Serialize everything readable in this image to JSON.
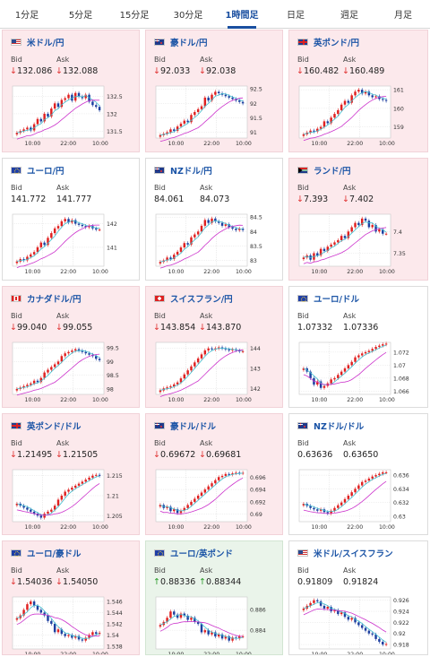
{
  "tabs": [
    {
      "label": "1分足",
      "active": false
    },
    {
      "label": "5分足",
      "active": false
    },
    {
      "label": "15分足",
      "active": false
    },
    {
      "label": "30分足",
      "active": false
    },
    {
      "label": "1時間足",
      "active": true
    },
    {
      "label": "日足",
      "active": false
    },
    {
      "label": "週足",
      "active": false
    },
    {
      "label": "月足",
      "active": false
    }
  ],
  "labels": {
    "bid": "Bid",
    "ask": "Ask"
  },
  "colors": {
    "up_candle": "#e02020",
    "down_candle": "#1d3fa0",
    "ma_fast": "#42c0d0",
    "ma_slow": "#cc33cc",
    "down_bg": "#fce9ec",
    "up_bg": "#eaf4ea",
    "pair_text": "#1b54a6"
  },
  "cards": [
    {
      "pair": "米ドル/円",
      "flag": "US",
      "trend": "down",
      "bid": "132.086",
      "ask": "132.088",
      "chart_data": {
        "type": "candlestick",
        "xticks": [
          "10:00",
          "22:00",
          "10:00"
        ],
        "yticks": [
          "132.5",
          "132",
          "131.5"
        ],
        "ylim": [
          131.3,
          132.8
        ],
        "close": [
          131.45,
          131.5,
          131.55,
          131.6,
          131.52,
          131.7,
          131.85,
          131.78,
          132.0,
          131.92,
          132.15,
          132.3,
          132.2,
          132.4,
          132.45,
          132.55,
          132.38,
          132.6,
          132.5,
          132.45,
          132.55,
          132.35,
          132.25,
          132.2,
          132.1
        ]
      }
    },
    {
      "pair": "豪ドル/円",
      "flag": "AU",
      "trend": "down",
      "bid": "92.033",
      "ask": "92.038",
      "chart_data": {
        "type": "candlestick",
        "xticks": [
          "10:00",
          "22:00",
          "10:00"
        ],
        "yticks": [
          "92.5",
          "92",
          "91.5",
          "91"
        ],
        "ylim": [
          90.8,
          92.6
        ],
        "close": [
          90.9,
          90.95,
          91.0,
          91.1,
          91.05,
          91.2,
          91.3,
          91.4,
          91.35,
          91.6,
          91.7,
          91.8,
          91.9,
          92.2,
          92.1,
          92.3,
          92.4,
          92.35,
          92.3,
          92.25,
          92.2,
          92.15,
          92.1,
          92.05,
          92.0
        ]
      }
    },
    {
      "pair": "英ポンド/円",
      "flag": "GB",
      "trend": "down",
      "bid": "160.482",
      "ask": "160.489",
      "chart_data": {
        "type": "candlestick",
        "xticks": [
          "10:00",
          "22:00",
          "10:00"
        ],
        "yticks": [
          "161",
          "160",
          "159"
        ],
        "ylim": [
          158.4,
          161.2
        ],
        "close": [
          158.6,
          158.7,
          158.8,
          158.75,
          158.9,
          159.0,
          159.3,
          159.2,
          159.5,
          159.7,
          159.9,
          160.2,
          160.4,
          160.3,
          160.7,
          160.9,
          161.0,
          160.8,
          160.9,
          160.7,
          160.6,
          160.65,
          160.5,
          160.45,
          160.4
        ]
      }
    },
    {
      "pair": "ユーロ/円",
      "flag": "EU",
      "trend": "flat",
      "bid": "141.772",
      "ask": "141.777",
      "chart_data": {
        "type": "candlestick",
        "xticks": [
          "10:00",
          "22:00",
          "10:00"
        ],
        "yticks": [
          "142",
          "141"
        ],
        "ylim": [
          140.2,
          142.4
        ],
        "close": [
          140.4,
          140.5,
          140.45,
          140.6,
          140.7,
          140.8,
          141.0,
          141.2,
          141.1,
          141.4,
          141.6,
          141.8,
          141.9,
          142.1,
          142.2,
          142.05,
          142.15,
          142.0,
          141.95,
          141.9,
          141.85,
          141.9,
          141.8,
          141.75,
          141.75
        ]
      }
    },
    {
      "pair": "NZドル/円",
      "flag": "NZ",
      "trend": "flat",
      "bid": "84.061",
      "ask": "84.073",
      "chart_data": {
        "type": "candlestick",
        "xticks": [
          "10:00",
          "22:00",
          "10:00"
        ],
        "yticks": [
          "84.5",
          "84",
          "83.5",
          "83"
        ],
        "ylim": [
          82.8,
          84.6
        ],
        "close": [
          82.95,
          83.0,
          83.1,
          83.05,
          83.2,
          83.3,
          83.45,
          83.6,
          83.55,
          83.8,
          83.9,
          84.0,
          84.2,
          84.4,
          84.3,
          84.45,
          84.35,
          84.3,
          84.2,
          84.25,
          84.15,
          84.1,
          84.05,
          84.1,
          84.05
        ]
      }
    },
    {
      "pair": "ランド/円",
      "flag": "ZA",
      "trend": "down",
      "bid": "7.393",
      "ask": "7.402",
      "chart_data": {
        "type": "candlestick",
        "xticks": [
          "10:00",
          "22:00",
          "10:00"
        ],
        "yticks": [
          "7.4",
          "7.35"
        ],
        "ylim": [
          7.32,
          7.44
        ],
        "close": [
          7.34,
          7.345,
          7.335,
          7.35,
          7.345,
          7.36,
          7.355,
          7.365,
          7.37,
          7.375,
          7.38,
          7.39,
          7.385,
          7.4,
          7.41,
          7.42,
          7.415,
          7.43,
          7.425,
          7.41,
          7.415,
          7.4,
          7.405,
          7.395,
          7.395
        ]
      }
    },
    {
      "pair": "カナダドル/円",
      "flag": "CA",
      "trend": "down",
      "bid": "99.040",
      "ask": "99.055",
      "chart_data": {
        "type": "candlestick",
        "xticks": [
          "10:00",
          "22:00",
          "10:00"
        ],
        "yticks": [
          "99.5",
          "99",
          "98.5",
          "98"
        ],
        "ylim": [
          97.8,
          99.7
        ],
        "close": [
          98.0,
          98.05,
          98.1,
          98.15,
          98.2,
          98.3,
          98.25,
          98.4,
          98.6,
          98.7,
          98.8,
          98.9,
          99.0,
          99.2,
          99.3,
          99.35,
          99.4,
          99.45,
          99.4,
          99.35,
          99.3,
          99.25,
          99.2,
          99.1,
          99.05
        ]
      }
    },
    {
      "pair": "スイスフラン/円",
      "flag": "CH",
      "trend": "down",
      "bid": "143.854",
      "ask": "143.870",
      "chart_data": {
        "type": "candlestick",
        "xticks": [
          "10:00",
          "22:00",
          "10:00"
        ],
        "yticks": [
          "144",
          "143",
          "142"
        ],
        "ylim": [
          141.7,
          144.3
        ],
        "close": [
          141.9,
          142.0,
          142.05,
          142.1,
          142.2,
          142.3,
          142.5,
          142.7,
          142.9,
          143.1,
          143.3,
          143.5,
          143.7,
          143.9,
          144.0,
          143.95,
          144.0,
          144.05,
          144.0,
          143.95,
          143.9,
          143.95,
          143.9,
          143.85,
          143.86
        ]
      }
    },
    {
      "pair": "ユーロ/ドル",
      "flag": "EU",
      "trend": "flat",
      "bid": "1.07332",
      "ask": "1.07336",
      "chart_data": {
        "type": "candlestick",
        "xticks": [
          "10:00",
          "22:00",
          "10:00"
        ],
        "yticks": [
          "1.072",
          "1.07",
          "1.068",
          "1.066"
        ],
        "ylim": [
          1.0655,
          1.0735
        ],
        "close": [
          1.0695,
          1.069,
          1.068,
          1.067,
          1.0675,
          1.0665,
          1.0668,
          1.0672,
          1.0678,
          1.068,
          1.0685,
          1.069,
          1.0695,
          1.07,
          1.0705,
          1.0712,
          1.0715,
          1.0718,
          1.072,
          1.0722,
          1.0725,
          1.0728,
          1.073,
          1.0732,
          1.0733
        ]
      }
    },
    {
      "pair": "英ポンド/ドル",
      "flag": "GB",
      "trend": "down",
      "bid": "1.21495",
      "ask": "1.21505",
      "chart_data": {
        "type": "candlestick",
        "xticks": [
          "10:00",
          "22:00",
          "10:00"
        ],
        "yticks": [
          "1.215",
          "1.21",
          "1.205"
        ],
        "ylim": [
          1.2035,
          1.2165
        ],
        "close": [
          1.208,
          1.2075,
          1.207,
          1.2065,
          1.206,
          1.2055,
          1.205,
          1.2045,
          1.2055,
          1.206,
          1.2065,
          1.2075,
          1.209,
          1.21,
          1.211,
          1.2115,
          1.212,
          1.2125,
          1.213,
          1.2135,
          1.214,
          1.2145,
          1.215,
          1.2152,
          1.215
        ]
      }
    },
    {
      "pair": "豪ドル/ドル",
      "flag": "AU",
      "trend": "down",
      "bid": "0.69672",
      "ask": "0.69681",
      "chart_data": {
        "type": "candlestick",
        "xticks": [
          "10:00",
          "22:00",
          "10:00"
        ],
        "yticks": [
          "0.696",
          "0.694",
          "0.692",
          "0.69"
        ],
        "ylim": [
          0.6888,
          0.6972
        ],
        "close": [
          0.6915,
          0.691,
          0.6912,
          0.6905,
          0.6908,
          0.6902,
          0.6906,
          0.691,
          0.6915,
          0.692,
          0.6925,
          0.693,
          0.6935,
          0.694,
          0.6945,
          0.695,
          0.6955,
          0.696,
          0.6962,
          0.6965,
          0.6964,
          0.6966,
          0.6967,
          0.6966,
          0.6967
        ]
      }
    },
    {
      "pair": "NZドル/ドル",
      "flag": "NZ",
      "trend": "flat",
      "bid": "0.63636",
      "ask": "0.63650",
      "chart_data": {
        "type": "candlestick",
        "xticks": [
          "10:00",
          "22:00",
          "10:00"
        ],
        "yticks": [
          "0.636",
          "0.634",
          "0.632",
          "0.63"
        ],
        "ylim": [
          0.6292,
          0.6368
        ],
        "close": [
          0.6318,
          0.6315,
          0.6312,
          0.631,
          0.6308,
          0.631,
          0.6306,
          0.6304,
          0.6308,
          0.6312,
          0.6316,
          0.632,
          0.6325,
          0.633,
          0.6335,
          0.634,
          0.6345,
          0.635,
          0.6352,
          0.6355,
          0.6358,
          0.636,
          0.6362,
          0.6364,
          0.6364
        ]
      }
    },
    {
      "pair": "ユーロ/豪ドル",
      "flag": "EU",
      "trend": "down",
      "bid": "1.54036",
      "ask": "1.54050",
      "chart_data": {
        "type": "candlestick",
        "xticks": [
          "10:00",
          "22:00",
          "10:00"
        ],
        "yticks": [
          "1.546",
          "1.544",
          "1.542",
          "1.54",
          "1.538"
        ],
        "ylim": [
          1.5375,
          1.5468
        ],
        "close": [
          1.543,
          1.5435,
          1.5445,
          1.5455,
          1.546,
          1.5452,
          1.5445,
          1.544,
          1.5435,
          1.5425,
          1.542,
          1.5405,
          1.541,
          1.5402,
          1.5398,
          1.54,
          1.5395,
          1.5398,
          1.5392,
          1.539,
          1.5395,
          1.54,
          1.5405,
          1.5402,
          1.5404
        ]
      }
    },
    {
      "pair": "ユーロ/英ポンド",
      "flag": "EU",
      "trend": "up",
      "bid": "0.88336",
      "ask": "0.88344",
      "chart_data": {
        "type": "candlestick",
        "xticks": [
          "10:00",
          "22:00",
          "10:00"
        ],
        "yticks": [
          "0.886",
          "0.884"
        ],
        "ylim": [
          0.8822,
          0.8872
        ],
        "close": [
          0.8845,
          0.8848,
          0.8852,
          0.8858,
          0.8855,
          0.8852,
          0.8856,
          0.8854,
          0.885,
          0.8852,
          0.8848,
          0.8846,
          0.8838,
          0.884,
          0.8836,
          0.8838,
          0.8834,
          0.8836,
          0.8832,
          0.8834,
          0.883,
          0.8833,
          0.8832,
          0.8834,
          0.8834
        ]
      }
    },
    {
      "pair": "米ドル/スイスフラン",
      "flag": "US",
      "trend": "flat",
      "bid": "0.91809",
      "ask": "0.91824",
      "chart_data": {
        "type": "candlestick",
        "xticks": [
          "10:00",
          "22:00",
          "10:00"
        ],
        "yticks": [
          "0.926",
          "0.924",
          "0.922",
          "0.92",
          "0.918"
        ],
        "ylim": [
          0.9172,
          0.9266
        ],
        "close": [
          0.9245,
          0.925,
          0.9255,
          0.926,
          0.9258,
          0.925,
          0.9245,
          0.9248,
          0.924,
          0.9242,
          0.9235,
          0.9238,
          0.923,
          0.9225,
          0.9228,
          0.922,
          0.9215,
          0.921,
          0.9205,
          0.92,
          0.9198,
          0.919,
          0.9185,
          0.918,
          0.9181
        ]
      }
    }
  ]
}
